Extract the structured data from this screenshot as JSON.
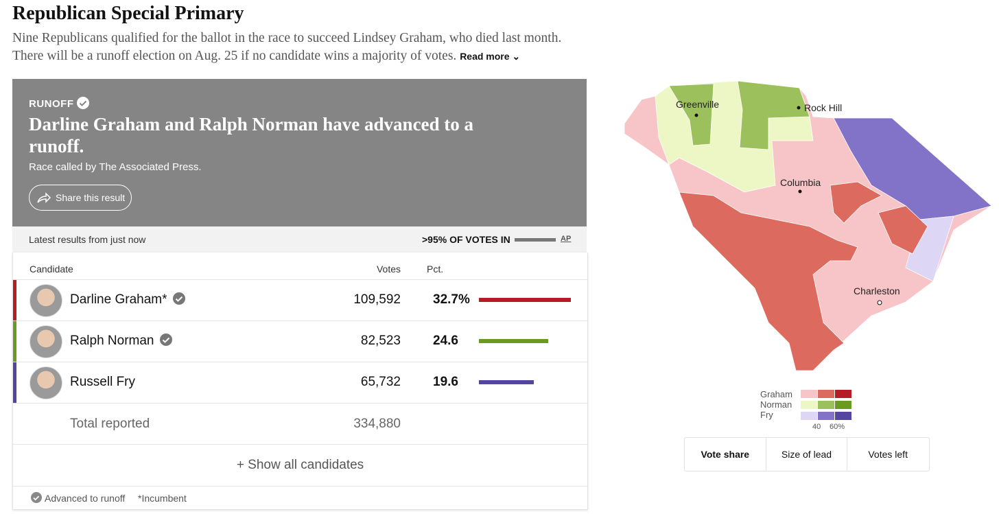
{
  "header": {
    "title": "Republican Special Primary",
    "description": "Nine Republicans qualified for the ballot in the race to succeed Lindsey Graham, who died last month. There will be a runoff election on Aug. 25 if no candidate wins a majority of votes.",
    "read_more": "Read more"
  },
  "status": {
    "label": "RUNOFF",
    "headline": "Darline Graham and Ralph Norman have advanced to a runoff.",
    "called_by": "Race called by The Associated Press.",
    "share": "Share this result"
  },
  "results_bar": {
    "latest": "Latest results from just now",
    "reporting": ">95% OF VOTES IN",
    "source": "AP"
  },
  "table": {
    "columns": [
      "Candidate",
      "Votes",
      "Pct."
    ],
    "rows": [
      {
        "name": "Darline Graham*",
        "votes": "109,592",
        "pct": 32.7,
        "pct_label": "32.7%",
        "color": "#b51c24",
        "advanced": true
      },
      {
        "name": "Ralph Norman",
        "votes": "82,523",
        "pct": 24.6,
        "color": "#6a9a1f",
        "advanced": true
      },
      {
        "name": "Russell Fry",
        "votes": "65,732",
        "pct": 19.6,
        "color": "#5446a0",
        "advanced": false
      }
    ],
    "total": {
      "label": "Total reported",
      "votes": "334,880"
    },
    "show_all": "+ Show all candidates"
  },
  "footnotes": [
    "Advanced to runoff",
    "*Incumbent"
  ],
  "map": {
    "cities": [
      "Greenville",
      "Rock Hill",
      "Columbia",
      "Charleston"
    ],
    "legend": {
      "rows": [
        "Graham",
        "Norman",
        "Fry"
      ],
      "ticks": [
        "40",
        "60%"
      ]
    },
    "tabs": [
      "Vote share",
      "Size of lead",
      "Votes left"
    ]
  }
}
